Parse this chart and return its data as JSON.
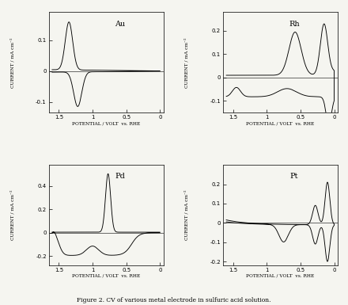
{
  "title": "Figure 2. CV of various metal electrode in sulfuric acid solution.",
  "subplots": [
    "Au",
    "Rh",
    "Pd",
    "Pt"
  ],
  "xlabel": "POTENTIAL / VOLT  vs. RHE",
  "ylabel": "CURRENT / mA cm⁻²",
  "Au": {
    "ylim": [
      -0.135,
      0.19
    ],
    "yticks": [
      -0.1,
      0.0,
      0.1
    ],
    "xlim": [
      1.65,
      -0.05
    ]
  },
  "Rh": {
    "ylim": [
      -0.15,
      0.28
    ],
    "yticks": [
      -0.1,
      0.0,
      0.1,
      0.2
    ],
    "xlim": [
      1.65,
      -0.05
    ]
  },
  "Pd": {
    "ylim": [
      -0.28,
      0.58
    ],
    "yticks": [
      -0.2,
      0.0,
      0.2,
      0.4
    ],
    "xlim": [
      1.65,
      -0.05
    ]
  },
  "Pt": {
    "ylim": [
      -0.22,
      0.3
    ],
    "yticks": [
      -0.2,
      -0.1,
      0.0,
      0.1,
      0.2
    ],
    "xlim": [
      1.65,
      -0.05
    ]
  },
  "xticks": [
    1.5,
    1.0,
    0.5,
    0
  ],
  "line_color": "#000000",
  "bg_color": "#f5f5f0",
  "figsize": [
    4.4,
    3.85
  ],
  "dpi": 100
}
